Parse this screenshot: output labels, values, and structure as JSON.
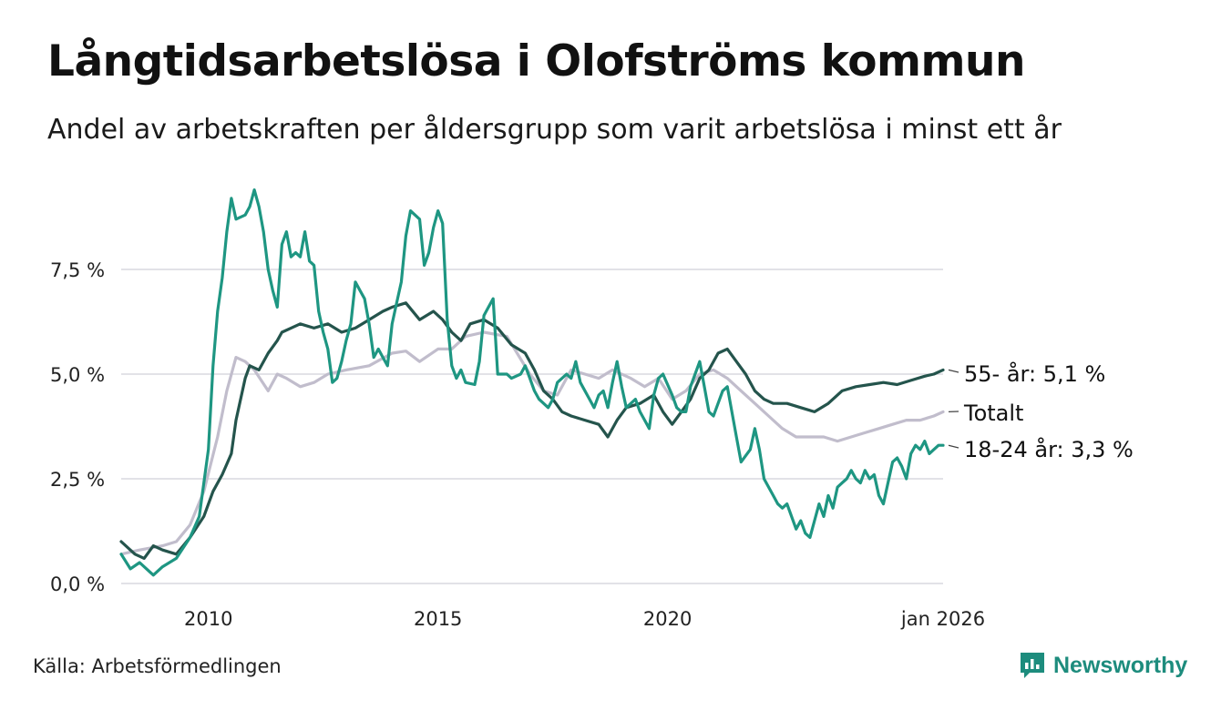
{
  "header": {
    "title": "Långtidsarbetslösa i Olofströms kommun",
    "subtitle": "Andel av arbetskraften per åldersgrupp som varit arbetslösa i minst ett år"
  },
  "footer": {
    "source": "Källa: Arbetsförmedlingen",
    "brand": "Newsworthy"
  },
  "icons": {
    "brand_logo": "newsworthy-logo-icon"
  },
  "colors": {
    "series_55": "#24544c",
    "series_total": "#c1bdcc",
    "series_young": "#1e9682",
    "grid": "#d9d9df"
  },
  "chart_data": {
    "type": "line",
    "title": "Långtidsarbetslösa i Olofströms kommun",
    "xlabel": "",
    "ylabel": "",
    "xlim": [
      2008.1,
      2026.0
    ],
    "ylim": [
      0,
      9.5
    ],
    "grid": true,
    "y_ticks": [
      {
        "value": 0,
        "label": "0,0 %"
      },
      {
        "value": 2.5,
        "label": "2,5 %"
      },
      {
        "value": 5,
        "label": "5,0 %"
      },
      {
        "value": 7.5,
        "label": "7,5 %"
      }
    ],
    "x_ticks": [
      {
        "value": 2010,
        "label": "2010"
      },
      {
        "value": 2015,
        "label": "2015"
      },
      {
        "value": 2020,
        "label": "2020"
      },
      {
        "value": 2026.0,
        "label": "jan 2026"
      }
    ],
    "series": [
      {
        "name": "Totalt",
        "label": "Totalt",
        "color": "#c1bdcc",
        "points": [
          [
            2008.1,
            0.7
          ],
          [
            2008.5,
            0.8
          ],
          [
            2009.0,
            0.9
          ],
          [
            2009.3,
            1.0
          ],
          [
            2009.6,
            1.4
          ],
          [
            2009.9,
            2.2
          ],
          [
            2010.2,
            3.5
          ],
          [
            2010.4,
            4.6
          ],
          [
            2010.6,
            5.4
          ],
          [
            2010.8,
            5.3
          ],
          [
            2011.0,
            5.1
          ],
          [
            2011.3,
            4.6
          ],
          [
            2011.5,
            5.0
          ],
          [
            2011.7,
            4.9
          ],
          [
            2012.0,
            4.7
          ],
          [
            2012.3,
            4.8
          ],
          [
            2012.6,
            5.0
          ],
          [
            2013.0,
            5.1
          ],
          [
            2013.5,
            5.2
          ],
          [
            2014.0,
            5.5
          ],
          [
            2014.3,
            5.55
          ],
          [
            2014.6,
            5.3
          ],
          [
            2015.0,
            5.6
          ],
          [
            2015.3,
            5.6
          ],
          [
            2015.6,
            5.9
          ],
          [
            2016.0,
            6.0
          ],
          [
            2016.5,
            5.9
          ],
          [
            2017.0,
            5.0
          ],
          [
            2017.3,
            4.6
          ],
          [
            2017.6,
            4.5
          ],
          [
            2017.9,
            5.1
          ],
          [
            2018.2,
            5.0
          ],
          [
            2018.5,
            4.9
          ],
          [
            2018.8,
            5.1
          ],
          [
            2019.2,
            4.9
          ],
          [
            2019.5,
            4.7
          ],
          [
            2019.8,
            4.9
          ],
          [
            2020.1,
            4.4
          ],
          [
            2020.4,
            4.6
          ],
          [
            2020.7,
            5.0
          ],
          [
            2021.0,
            5.1
          ],
          [
            2021.3,
            4.9
          ],
          [
            2021.6,
            4.6
          ],
          [
            2021.9,
            4.3
          ],
          [
            2022.2,
            4.0
          ],
          [
            2022.5,
            3.7
          ],
          [
            2022.8,
            3.5
          ],
          [
            2023.1,
            3.5
          ],
          [
            2023.4,
            3.5
          ],
          [
            2023.7,
            3.4
          ],
          [
            2024.0,
            3.5
          ],
          [
            2024.3,
            3.6
          ],
          [
            2024.6,
            3.7
          ],
          [
            2024.9,
            3.8
          ],
          [
            2025.2,
            3.9
          ],
          [
            2025.5,
            3.9
          ],
          [
            2025.8,
            4.0
          ],
          [
            2026.0,
            4.1
          ]
        ]
      },
      {
        "name": "55- år",
        "label": "55- år: 5,1 %",
        "color": "#24544c",
        "points": [
          [
            2008.1,
            1.0
          ],
          [
            2008.4,
            0.7
          ],
          [
            2008.6,
            0.6
          ],
          [
            2008.8,
            0.9
          ],
          [
            2009.0,
            0.8
          ],
          [
            2009.3,
            0.7
          ],
          [
            2009.6,
            1.1
          ],
          [
            2009.9,
            1.6
          ],
          [
            2010.1,
            2.2
          ],
          [
            2010.3,
            2.6
          ],
          [
            2010.5,
            3.1
          ],
          [
            2010.6,
            3.9
          ],
          [
            2010.8,
            4.9
          ],
          [
            2010.9,
            5.2
          ],
          [
            2011.1,
            5.1
          ],
          [
            2011.3,
            5.5
          ],
          [
            2011.5,
            5.8
          ],
          [
            2011.6,
            6.0
          ],
          [
            2011.8,
            6.1
          ],
          [
            2012.0,
            6.2
          ],
          [
            2012.3,
            6.1
          ],
          [
            2012.6,
            6.2
          ],
          [
            2012.9,
            6.0
          ],
          [
            2013.2,
            6.1
          ],
          [
            2013.5,
            6.3
          ],
          [
            2013.8,
            6.5
          ],
          [
            2014.0,
            6.6
          ],
          [
            2014.3,
            6.7
          ],
          [
            2014.6,
            6.3
          ],
          [
            2014.9,
            6.5
          ],
          [
            2015.1,
            6.3
          ],
          [
            2015.3,
            6.0
          ],
          [
            2015.5,
            5.8
          ],
          [
            2015.7,
            6.2
          ],
          [
            2016.0,
            6.3
          ],
          [
            2016.3,
            6.1
          ],
          [
            2016.6,
            5.7
          ],
          [
            2016.9,
            5.5
          ],
          [
            2017.1,
            5.1
          ],
          [
            2017.3,
            4.6
          ],
          [
            2017.5,
            4.4
          ],
          [
            2017.7,
            4.1
          ],
          [
            2017.9,
            4.0
          ],
          [
            2018.2,
            3.9
          ],
          [
            2018.5,
            3.8
          ],
          [
            2018.7,
            3.5
          ],
          [
            2018.9,
            3.9
          ],
          [
            2019.1,
            4.2
          ],
          [
            2019.4,
            4.3
          ],
          [
            2019.7,
            4.5
          ],
          [
            2019.9,
            4.1
          ],
          [
            2020.1,
            3.8
          ],
          [
            2020.3,
            4.1
          ],
          [
            2020.5,
            4.4
          ],
          [
            2020.7,
            4.9
          ],
          [
            2020.9,
            5.1
          ],
          [
            2021.1,
            5.5
          ],
          [
            2021.3,
            5.6
          ],
          [
            2021.5,
            5.3
          ],
          [
            2021.7,
            5.0
          ],
          [
            2021.9,
            4.6
          ],
          [
            2022.1,
            4.4
          ],
          [
            2022.3,
            4.3
          ],
          [
            2022.6,
            4.3
          ],
          [
            2022.9,
            4.2
          ],
          [
            2023.2,
            4.1
          ],
          [
            2023.5,
            4.3
          ],
          [
            2023.8,
            4.6
          ],
          [
            2024.1,
            4.7
          ],
          [
            2024.4,
            4.75
          ],
          [
            2024.7,
            4.8
          ],
          [
            2025.0,
            4.75
          ],
          [
            2025.3,
            4.85
          ],
          [
            2025.6,
            4.95
          ],
          [
            2025.8,
            5.0
          ],
          [
            2026.0,
            5.1
          ]
        ]
      },
      {
        "name": "18-24 år",
        "label": "18-24 år: 3,3 %",
        "color": "#1e9682",
        "points": [
          [
            2008.1,
            0.7
          ],
          [
            2008.3,
            0.35
          ],
          [
            2008.5,
            0.5
          ],
          [
            2008.7,
            0.3
          ],
          [
            2008.8,
            0.2
          ],
          [
            2009.0,
            0.4
          ],
          [
            2009.3,
            0.6
          ],
          [
            2009.6,
            1.1
          ],
          [
            2009.8,
            1.6
          ],
          [
            2010.0,
            3.2
          ],
          [
            2010.1,
            5.2
          ],
          [
            2010.2,
            6.5
          ],
          [
            2010.3,
            7.3
          ],
          [
            2010.4,
            8.4
          ],
          [
            2010.5,
            9.2
          ],
          [
            2010.6,
            8.7
          ],
          [
            2010.8,
            8.8
          ],
          [
            2010.9,
            9.0
          ],
          [
            2011.0,
            9.4
          ],
          [
            2011.1,
            9.0
          ],
          [
            2011.2,
            8.4
          ],
          [
            2011.3,
            7.5
          ],
          [
            2011.4,
            7.0
          ],
          [
            2011.5,
            6.6
          ],
          [
            2011.6,
            8.1
          ],
          [
            2011.7,
            8.4
          ],
          [
            2011.8,
            7.8
          ],
          [
            2011.9,
            7.9
          ],
          [
            2012.0,
            7.8
          ],
          [
            2012.1,
            8.4
          ],
          [
            2012.2,
            7.7
          ],
          [
            2012.3,
            7.6
          ],
          [
            2012.4,
            6.5
          ],
          [
            2012.5,
            6.0
          ],
          [
            2012.6,
            5.6
          ],
          [
            2012.7,
            4.8
          ],
          [
            2012.8,
            4.9
          ],
          [
            2012.9,
            5.3
          ],
          [
            2013.0,
            5.8
          ],
          [
            2013.1,
            6.2
          ],
          [
            2013.2,
            7.2
          ],
          [
            2013.3,
            7.0
          ],
          [
            2013.4,
            6.8
          ],
          [
            2013.5,
            6.2
          ],
          [
            2013.6,
            5.4
          ],
          [
            2013.7,
            5.6
          ],
          [
            2013.8,
            5.4
          ],
          [
            2013.9,
            5.2
          ],
          [
            2014.0,
            6.2
          ],
          [
            2014.1,
            6.7
          ],
          [
            2014.2,
            7.2
          ],
          [
            2014.3,
            8.3
          ],
          [
            2014.4,
            8.9
          ],
          [
            2014.5,
            8.8
          ],
          [
            2014.6,
            8.7
          ],
          [
            2014.7,
            7.6
          ],
          [
            2014.8,
            7.9
          ],
          [
            2014.9,
            8.5
          ],
          [
            2015.0,
            8.9
          ],
          [
            2015.1,
            8.6
          ],
          [
            2015.2,
            6.3
          ],
          [
            2015.3,
            5.2
          ],
          [
            2015.4,
            4.9
          ],
          [
            2015.5,
            5.1
          ],
          [
            2015.6,
            4.8
          ],
          [
            2015.8,
            4.75
          ],
          [
            2015.9,
            5.3
          ],
          [
            2016.0,
            6.4
          ],
          [
            2016.1,
            6.6
          ],
          [
            2016.2,
            6.8
          ],
          [
            2016.3,
            5.0
          ],
          [
            2016.5,
            5.0
          ],
          [
            2016.6,
            4.9
          ],
          [
            2016.8,
            5.0
          ],
          [
            2016.9,
            5.2
          ],
          [
            2017.0,
            4.9
          ],
          [
            2017.1,
            4.6
          ],
          [
            2017.2,
            4.4
          ],
          [
            2017.4,
            4.2
          ],
          [
            2017.5,
            4.4
          ],
          [
            2017.6,
            4.8
          ],
          [
            2017.8,
            5.0
          ],
          [
            2017.9,
            4.9
          ],
          [
            2018.0,
            5.3
          ],
          [
            2018.1,
            4.8
          ],
          [
            2018.3,
            4.4
          ],
          [
            2018.4,
            4.2
          ],
          [
            2018.5,
            4.5
          ],
          [
            2018.6,
            4.6
          ],
          [
            2018.7,
            4.2
          ],
          [
            2018.8,
            4.8
          ],
          [
            2018.9,
            5.3
          ],
          [
            2019.0,
            4.7
          ],
          [
            2019.1,
            4.2
          ],
          [
            2019.3,
            4.4
          ],
          [
            2019.4,
            4.1
          ],
          [
            2019.5,
            3.9
          ],
          [
            2019.6,
            3.7
          ],
          [
            2019.7,
            4.5
          ],
          [
            2019.8,
            4.9
          ],
          [
            2019.9,
            5.0
          ],
          [
            2020.1,
            4.5
          ],
          [
            2020.2,
            4.2
          ],
          [
            2020.3,
            4.1
          ],
          [
            2020.4,
            4.1
          ],
          [
            2020.5,
            4.7
          ],
          [
            2020.7,
            5.3
          ],
          [
            2020.8,
            4.7
          ],
          [
            2020.9,
            4.1
          ],
          [
            2021.0,
            4.0
          ],
          [
            2021.2,
            4.6
          ],
          [
            2021.3,
            4.7
          ],
          [
            2021.4,
            4.1
          ],
          [
            2021.5,
            3.5
          ],
          [
            2021.6,
            2.9
          ],
          [
            2021.8,
            3.2
          ],
          [
            2021.9,
            3.7
          ],
          [
            2022.0,
            3.2
          ],
          [
            2022.1,
            2.5
          ],
          [
            2022.3,
            2.1
          ],
          [
            2022.4,
            1.9
          ],
          [
            2022.5,
            1.8
          ],
          [
            2022.6,
            1.9
          ],
          [
            2022.8,
            1.3
          ],
          [
            2022.9,
            1.5
          ],
          [
            2023.0,
            1.2
          ],
          [
            2023.1,
            1.1
          ],
          [
            2023.2,
            1.5
          ],
          [
            2023.3,
            1.9
          ],
          [
            2023.4,
            1.6
          ],
          [
            2023.5,
            2.1
          ],
          [
            2023.6,
            1.8
          ],
          [
            2023.7,
            2.3
          ],
          [
            2023.8,
            2.4
          ],
          [
            2023.9,
            2.5
          ],
          [
            2024.0,
            2.7
          ],
          [
            2024.1,
            2.5
          ],
          [
            2024.2,
            2.4
          ],
          [
            2024.3,
            2.7
          ],
          [
            2024.4,
            2.5
          ],
          [
            2024.5,
            2.6
          ],
          [
            2024.6,
            2.1
          ],
          [
            2024.7,
            1.9
          ],
          [
            2024.8,
            2.4
          ],
          [
            2024.9,
            2.9
          ],
          [
            2025.0,
            3.0
          ],
          [
            2025.1,
            2.8
          ],
          [
            2025.2,
            2.5
          ],
          [
            2025.3,
            3.1
          ],
          [
            2025.4,
            3.3
          ],
          [
            2025.5,
            3.2
          ],
          [
            2025.6,
            3.4
          ],
          [
            2025.7,
            3.1
          ],
          [
            2025.8,
            3.2
          ],
          [
            2025.9,
            3.3
          ],
          [
            2026.0,
            3.3
          ]
        ]
      }
    ]
  }
}
